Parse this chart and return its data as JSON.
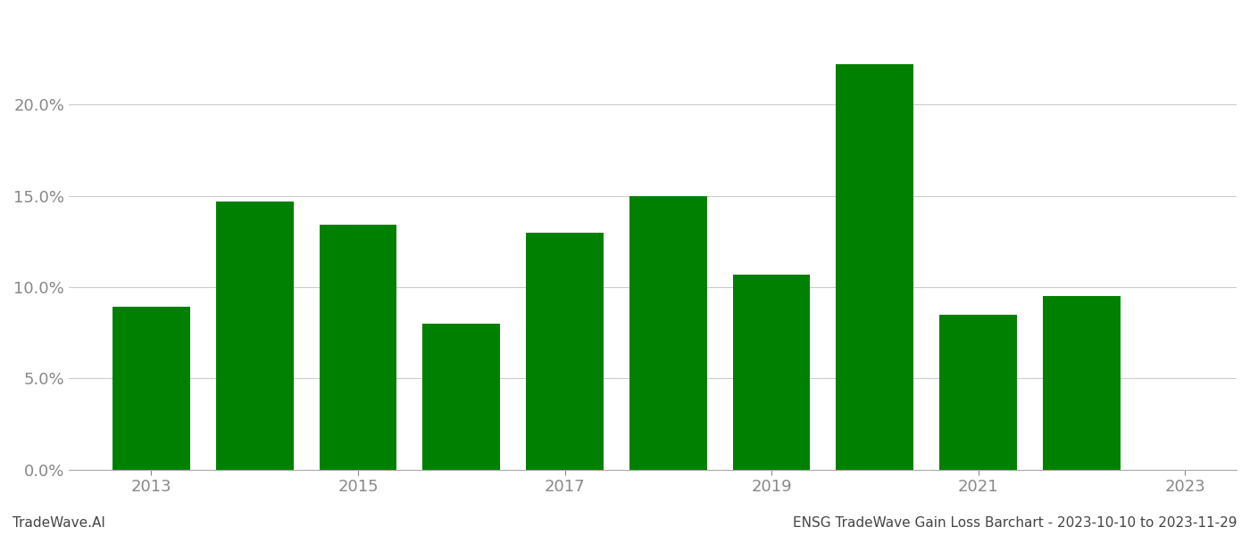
{
  "years": [
    2013,
    2014,
    2015,
    2016,
    2017,
    2018,
    2019,
    2020,
    2021,
    2022
  ],
  "values": [
    0.089,
    0.147,
    0.134,
    0.08,
    0.13,
    0.15,
    0.107,
    0.222,
    0.085,
    0.095
  ],
  "bar_color": "#008000",
  "background_color": "#ffffff",
  "ylim": [
    0,
    0.25
  ],
  "yticks": [
    0.0,
    0.05,
    0.1,
    0.15,
    0.2
  ],
  "xtick_positions": [
    0,
    2,
    4,
    6,
    8,
    10
  ],
  "xtick_labels": [
    "2013",
    "2015",
    "2017",
    "2019",
    "2021",
    "2023"
  ],
  "footer_left": "TradeWave.AI",
  "footer_right": "ENSG TradeWave Gain Loss Barchart - 2023-10-10 to 2023-11-29",
  "grid_color": "#cccccc",
  "tick_color": "#888888",
  "spine_color": "#aaaaaa",
  "bar_width": 0.75
}
